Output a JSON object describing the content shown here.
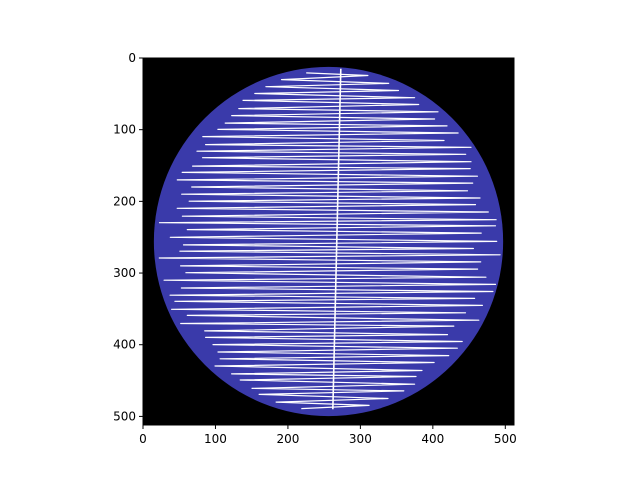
{
  "chart_data": {
    "type": "heatmap",
    "title": "",
    "xlabel": "",
    "ylabel": "",
    "image_size": [
      512,
      512
    ],
    "xlim": [
      0,
      512
    ],
    "ylim": [
      512,
      0
    ],
    "y_inverted": true,
    "grid": false,
    "x_ticks": [
      0,
      100,
      200,
      300,
      400,
      500
    ],
    "y_ticks": [
      0,
      100,
      200,
      300,
      400,
      500
    ],
    "x_tick_labels": [
      "0",
      "100",
      "200",
      "300",
      "400",
      "500"
    ],
    "y_tick_labels": [
      "0",
      "100",
      "200",
      "300",
      "400",
      "500"
    ],
    "disk": {
      "center_x": 256,
      "center_y": 256,
      "radius": 241
    },
    "colors": {
      "background": "#000000",
      "disk": "#3a3aaa",
      "trace": "#ffffff"
    },
    "trace": {
      "row_start": 15,
      "row_end": 495,
      "row_step": 5,
      "axis_line": [
        [
          273,
          15
        ],
        [
          262,
          490
        ]
      ]
    }
  }
}
